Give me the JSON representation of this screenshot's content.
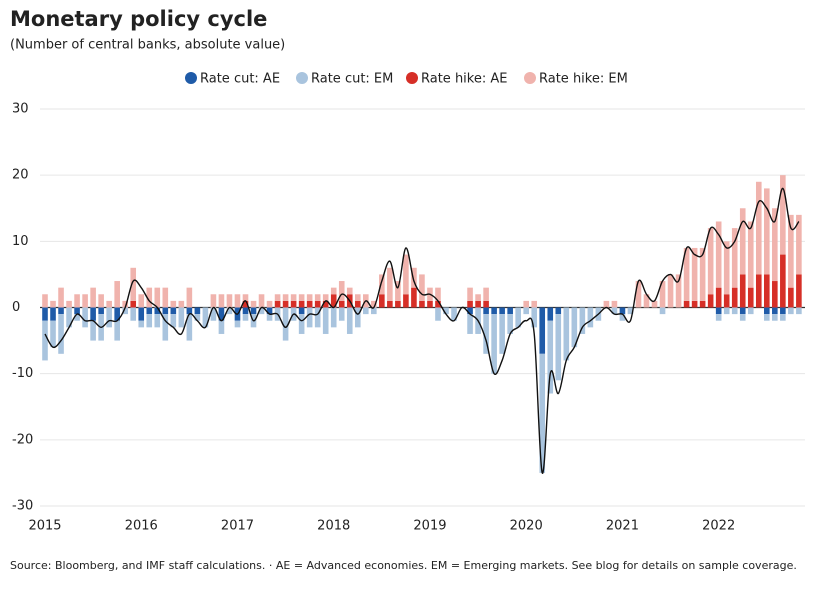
{
  "chart_data": {
    "type": "bar",
    "stacked": true,
    "title": "Monetary policy cycle",
    "subtitle": "(Number of central banks, absolute value)",
    "source": "Source: Bloomberg, and IMF staff calculations. · AE = Advanced economies. EM = Emerging markets. See blog for details on sample coverage.",
    "ylim": [
      -30,
      30
    ],
    "yticks": [
      -30,
      -20,
      -10,
      0,
      10,
      20,
      30
    ],
    "grid": true,
    "legend": "top",
    "categories": [
      "2015",
      null,
      null,
      null,
      null,
      null,
      null,
      null,
      null,
      null,
      null,
      null,
      "2016",
      null,
      null,
      null,
      null,
      null,
      null,
      null,
      null,
      null,
      null,
      null,
      "2017",
      null,
      null,
      null,
      null,
      null,
      null,
      null,
      null,
      null,
      null,
      null,
      "2018",
      null,
      null,
      null,
      null,
      null,
      null,
      null,
      null,
      null,
      null,
      null,
      "2019",
      null,
      null,
      null,
      null,
      null,
      null,
      null,
      null,
      null,
      null,
      null,
      "2020",
      null,
      null,
      null,
      null,
      null,
      null,
      null,
      null,
      null,
      null,
      null,
      "2021",
      null,
      null,
      null,
      null,
      null,
      null,
      null,
      null,
      null,
      null,
      null,
      "2022",
      null,
      null,
      null,
      null,
      null,
      null,
      null,
      null,
      null,
      null
    ],
    "series": [
      {
        "name": "Rate cut: AE",
        "color": "#1f5ba8",
        "values": [
          -2,
          -2,
          -1,
          0,
          -1,
          0,
          -2,
          -1,
          0,
          -2,
          0,
          0,
          -2,
          -1,
          -1,
          -1,
          -1,
          0,
          -1,
          -1,
          0,
          0,
          -2,
          0,
          -2,
          -1,
          -1,
          0,
          -1,
          0,
          0,
          0,
          -1,
          0,
          0,
          0,
          0,
          0,
          0,
          0,
          0,
          0,
          0,
          0,
          0,
          0,
          0,
          0,
          0,
          0,
          0,
          0,
          0,
          -1,
          0,
          -1,
          -1,
          -1,
          -1,
          0,
          0,
          0,
          -7,
          -2,
          -1,
          0,
          0,
          0,
          0,
          0,
          0,
          0,
          -1,
          0,
          0,
          0,
          0,
          0,
          0,
          0,
          0,
          0,
          0,
          0,
          -1,
          0,
          0,
          -1,
          0,
          0,
          -1,
          -1,
          -1,
          0,
          0
        ]
      },
      {
        "name": "Rate cut: EM",
        "color": "#a9c4de",
        "values": [
          -6,
          -4,
          -6,
          -3,
          -1,
          -3,
          -3,
          -4,
          -3,
          -3,
          -1,
          -2,
          -1,
          -2,
          -2,
          -4,
          -2,
          -3,
          -4,
          -1,
          -3,
          -2,
          -2,
          -1,
          -1,
          -1,
          -2,
          -1,
          -1,
          -2,
          -5,
          -2,
          -3,
          -3,
          -3,
          -4,
          -3,
          -2,
          -4,
          -3,
          -1,
          -1,
          0,
          0,
          0,
          0,
          0,
          0,
          0,
          -2,
          -1,
          -2,
          0,
          -3,
          -4,
          -6,
          -9,
          -6,
          -3,
          -3,
          -1,
          -3,
          -18,
          -11,
          -10,
          -8,
          -6,
          -4,
          -3,
          -2,
          0,
          -1,
          -1,
          -1,
          0,
          0,
          0,
          -1,
          0,
          0,
          0,
          0,
          0,
          0,
          -1,
          -1,
          -1,
          -1,
          -1,
          0,
          -1,
          -1,
          -1,
          -1,
          -1
        ]
      },
      {
        "name": "Rate hike: AE",
        "color": "#d62f27",
        "values": [
          0,
          0,
          0,
          0,
          0,
          0,
          0,
          0,
          0,
          0,
          0,
          1,
          0,
          0,
          0,
          0,
          0,
          0,
          0,
          0,
          0,
          0,
          0,
          0,
          0,
          1,
          0,
          0,
          0,
          1,
          1,
          1,
          1,
          1,
          1,
          1,
          2,
          1,
          2,
          1,
          0,
          0,
          2,
          1,
          1,
          2,
          3,
          1,
          1,
          1,
          0,
          0,
          0,
          1,
          1,
          1,
          0,
          0,
          0,
          0,
          0,
          0,
          0,
          0,
          0,
          0,
          0,
          0,
          0,
          0,
          0,
          0,
          0,
          0,
          0,
          0,
          0,
          0,
          0,
          0,
          1,
          1,
          1,
          2,
          3,
          2,
          3,
          5,
          3,
          5,
          5,
          4,
          8,
          3,
          5
        ]
      },
      {
        "name": "Rate hike: EM",
        "color": "#f0b3ad",
        "values": [
          2,
          1,
          3,
          1,
          2,
          2,
          3,
          2,
          1,
          4,
          1,
          5,
          2,
          3,
          3,
          3,
          1,
          1,
          3,
          0,
          0,
          2,
          2,
          2,
          2,
          1,
          1,
          2,
          1,
          1,
          1,
          1,
          1,
          1,
          1,
          1,
          1,
          3,
          1,
          1,
          2,
          1,
          3,
          5,
          3,
          6,
          3,
          4,
          2,
          2,
          0,
          0,
          0,
          2,
          1,
          2,
          0,
          0,
          0,
          0,
          1,
          1,
          0,
          0,
          0,
          0,
          0,
          0,
          0,
          0,
          1,
          1,
          0,
          0,
          4,
          2,
          1,
          4,
          5,
          5,
          8,
          8,
          8,
          10,
          10,
          8,
          9,
          10,
          10,
          14,
          13,
          11,
          12,
          11,
          9
        ]
      }
    ],
    "line": {
      "color": "#111111",
      "values": [
        -4,
        -6,
        -5,
        -3,
        -1,
        -2,
        -2,
        -3,
        -2,
        -2,
        0,
        4,
        3,
        1,
        0,
        -2,
        -3,
        -4,
        -1,
        -2,
        -3,
        0,
        -2,
        0,
        -1,
        1,
        -2,
        0,
        -1,
        -1,
        -3,
        -1,
        -2,
        -1,
        -1,
        1,
        0,
        2,
        1,
        -1,
        1,
        0,
        4,
        7,
        3,
        9,
        4,
        2,
        2,
        1,
        -1,
        -2,
        0,
        -1,
        -2,
        -5,
        -10,
        -8,
        -4,
        -3,
        -2,
        -4,
        -25,
        -10,
        -13,
        -8,
        -6,
        -3,
        -2,
        -1,
        0,
        -1,
        -1,
        -2,
        4,
        2,
        1,
        4,
        5,
        4,
        9,
        8,
        8,
        12,
        11,
        9,
        10,
        13,
        12,
        16,
        15,
        13,
        18,
        12,
        13
      ]
    }
  }
}
